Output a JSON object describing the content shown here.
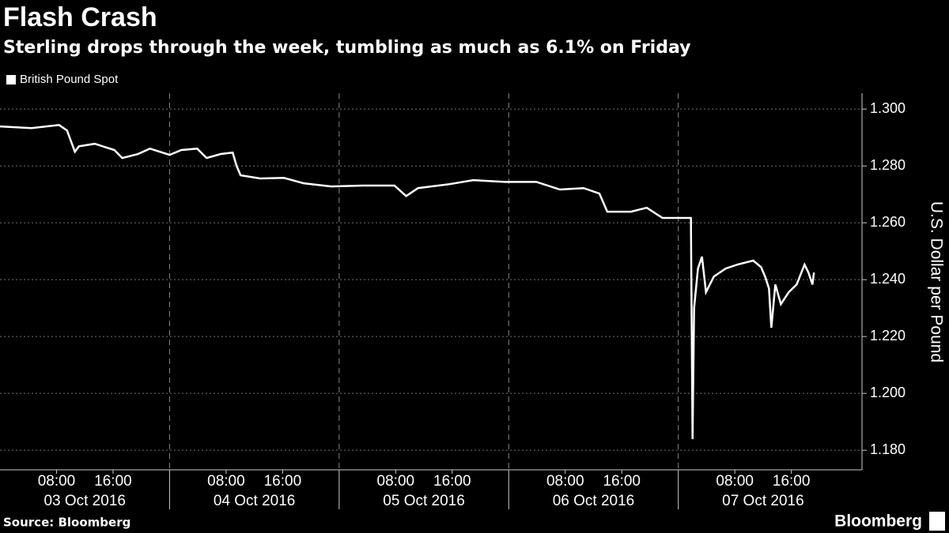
{
  "chart_data": {
    "type": "line",
    "title": "Flash Crash",
    "subtitle": "Sterling drops through the week, tumbling as much as 6.1% on Friday",
    "y_label": "U.S. Dollar per Pound",
    "source": "Source: Bloomberg",
    "brand": "Bloomberg",
    "legend": "top-left",
    "grid": true,
    "xlim": [
      "2016-10-03 00:00",
      "2016-10-08 02:00"
    ],
    "ylim": [
      1.1731,
      1.3056
    ],
    "yticks": [
      {
        "value": 1.18,
        "label": "1.180"
      },
      {
        "value": 1.2,
        "label": "1.200"
      },
      {
        "value": 1.22,
        "label": "1.220"
      },
      {
        "value": 1.24,
        "label": "1.240"
      },
      {
        "value": 1.26,
        "label": "1.260"
      },
      {
        "value": 1.28,
        "label": "1.280"
      },
      {
        "value": 1.3,
        "label": "1.300"
      }
    ],
    "xticks": [
      {
        "value": "2016-10-03 08:00",
        "label": "08:00"
      },
      {
        "value": "2016-10-03 16:00",
        "label": "16:00"
      },
      {
        "value": "2016-10-04 08:00",
        "label": "08:00"
      },
      {
        "value": "2016-10-04 16:00",
        "label": "16:00"
      },
      {
        "value": "2016-10-05 08:00",
        "label": "08:00"
      },
      {
        "value": "2016-10-05 16:00",
        "label": "16:00"
      },
      {
        "value": "2016-10-06 08:00",
        "label": "08:00"
      },
      {
        "value": "2016-10-06 16:00",
        "label": "16:00"
      },
      {
        "value": "2016-10-07 08:00",
        "label": "08:00"
      },
      {
        "value": "2016-10-07 16:00",
        "label": "16:00"
      }
    ],
    "xday_ticks": [
      {
        "value": "2016-10-03 12:00",
        "label": "03 Oct 2016"
      },
      {
        "value": "2016-10-04 12:00",
        "label": "04 Oct 2016"
      },
      {
        "value": "2016-10-05 12:00",
        "label": "05 Oct 2016"
      },
      {
        "value": "2016-10-06 12:00",
        "label": "06 Oct 2016"
      },
      {
        "value": "2016-10-07 12:00",
        "label": "07 Oct 2016"
      }
    ],
    "xday_lines": [
      "2016-10-04 00:00",
      "2016-10-05 00:00",
      "2016-10-06 00:00",
      "2016-10-07 00:00"
    ],
    "series": [
      {
        "name": "British Pound Spot",
        "color": "#ffffff",
        "x": [
          "2016-10-03 00:00",
          "2016-10-03 04:28",
          "2016-10-03 08:22",
          "2016-10-03 09:29",
          "2016-10-03 10:36",
          "2016-10-03 11:10",
          "2016-10-03 13:24",
          "2016-10-03 16:11",
          "2016-10-03 17:18",
          "2016-10-03 19:32",
          "2016-10-03 21:13",
          "2016-10-04 00:00",
          "2016-10-04 01:40",
          "2016-10-04 03:54",
          "2016-10-04 05:15",
          "2016-10-04 07:15",
          "2016-10-04 08:56",
          "2016-10-04 09:29",
          "2016-10-04 10:03",
          "2016-10-04 12:50",
          "2016-10-04 16:11",
          "2016-10-04 18:59",
          "2016-10-04 22:53",
          "2016-10-05 03:21",
          "2016-10-05 07:49",
          "2016-10-05 09:29",
          "2016-10-05 11:10",
          "2016-10-05 15:38",
          "2016-10-05 18:59",
          "2016-10-05 23:26",
          "2016-10-06 03:54",
          "2016-10-06 07:15",
          "2016-10-06 10:36",
          "2016-10-06 12:50",
          "2016-10-06 13:57",
          "2016-10-06 17:18",
          "2016-10-06 19:32",
          "2016-10-06 21:46",
          "2016-10-07 01:47",
          "2016-10-07 02:01",
          "2016-10-07 02:14",
          "2016-10-07 02:47",
          "2016-10-07 03:21",
          "2016-10-07 03:55",
          "2016-10-07 05:02",
          "2016-10-07 06:42",
          "2016-10-07 08:22",
          "2016-10-07 10:36",
          "2016-10-07 11:43",
          "2016-10-07 12:17",
          "2016-10-07 12:50",
          "2016-10-07 13:10",
          "2016-10-07 13:44",
          "2016-10-07 14:31",
          "2016-10-07 15:38",
          "2016-10-07 16:45",
          "2016-10-07 17:52",
          "2016-10-07 18:25",
          "2016-10-07 18:59",
          "2016-10-07 19:12"
        ],
        "values": [
          1.2939,
          1.2933,
          1.2944,
          1.2925,
          1.285,
          1.2869,
          1.2878,
          1.2856,
          1.2828,
          1.2842,
          1.2861,
          1.2839,
          1.2856,
          1.2861,
          1.2828,
          1.2842,
          1.2847,
          1.28,
          1.2767,
          1.2756,
          1.2758,
          1.2739,
          1.2728,
          1.2731,
          1.2731,
          1.2694,
          1.2722,
          1.2736,
          1.275,
          1.2744,
          1.2744,
          1.2717,
          1.2722,
          1.2703,
          1.2639,
          1.2639,
          1.2653,
          1.2617,
          1.2617,
          1.1839,
          1.23,
          1.2439,
          1.2481,
          1.2356,
          1.2411,
          1.2439,
          1.2453,
          1.2467,
          1.2444,
          1.2411,
          1.2369,
          1.2231,
          1.2383,
          1.2314,
          1.2356,
          1.2383,
          1.2453,
          1.2425,
          1.2383,
          1.2425
        ]
      }
    ]
  }
}
